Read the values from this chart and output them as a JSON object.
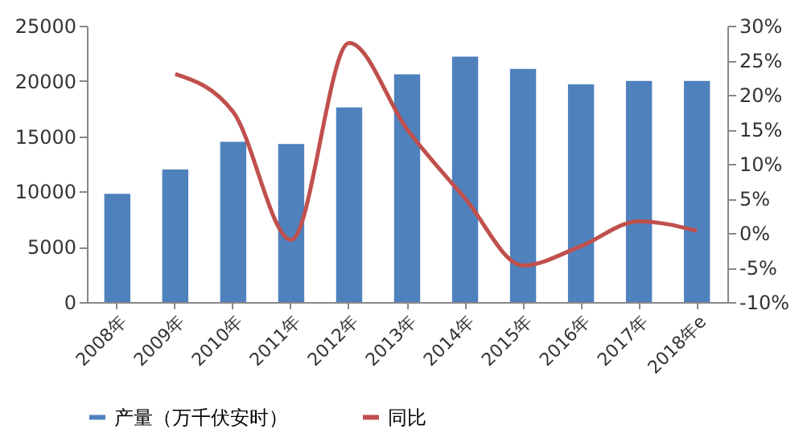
{
  "chart_data": {
    "type": "bar",
    "categories": [
      "2008年",
      "2009年",
      "2010年",
      "2011年",
      "2012年",
      "2013年",
      "2014年",
      "2015年",
      "2016年",
      "2017年",
      "2018年e"
    ],
    "series": [
      {
        "name": "产量（万千伏安时）",
        "color": "#4f81bd",
        "values": [
          9800,
          12000,
          14500,
          14300,
          17600,
          20600,
          22200,
          21100,
          19700,
          20000,
          20000
        ]
      },
      {
        "name": "同比",
        "type": "line",
        "axis": "y2",
        "color": "#c0504d",
        "values": [
          null,
          23,
          17.5,
          -1,
          27.5,
          15,
          5,
          -4.7,
          -1.9,
          1.7,
          0.3
        ]
      }
    ],
    "ylim": [
      0,
      25000
    ],
    "yticks": [
      0,
      5000,
      10000,
      15000,
      20000,
      25000
    ],
    "y2lim": [
      -10,
      30
    ],
    "y2ticks": [
      {
        "value": -10,
        "label": "-10%"
      },
      {
        "value": -5,
        "label": "-5%"
      },
      {
        "value": 0,
        "label": "0%"
      },
      {
        "value": 5,
        "label": "5%"
      },
      {
        "value": 10,
        "label": "10%"
      },
      {
        "value": 15,
        "label": "15%"
      },
      {
        "value": 20,
        "label": "20%"
      },
      {
        "value": 25,
        "label": "25%"
      },
      {
        "value": 30,
        "label": "30%"
      }
    ],
    "grid": false,
    "legend": "bottom",
    "marker": "none",
    "line_style": "solid"
  }
}
